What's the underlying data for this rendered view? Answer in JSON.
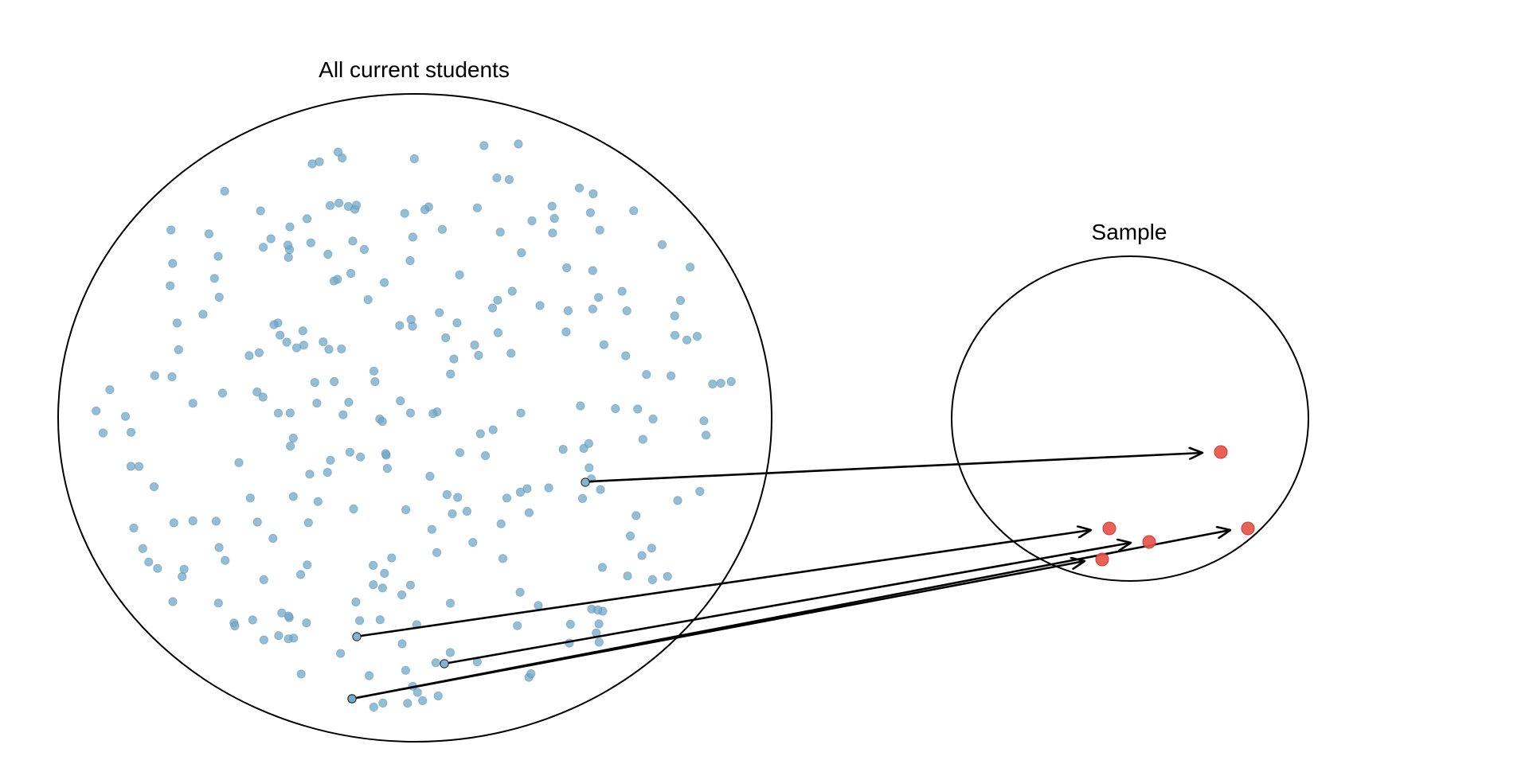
{
  "population": {
    "label": "All current students",
    "dot_color": "#6fa8c8"
  },
  "sample": {
    "label": "Sample",
    "dot_color": "#e8544a"
  }
}
